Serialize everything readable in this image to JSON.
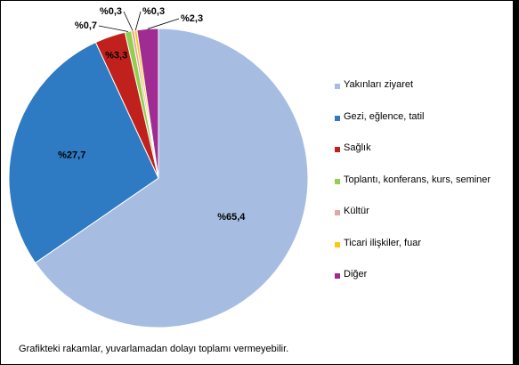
{
  "chart_data": {
    "type": "pie",
    "series": [
      {
        "label": "Yakınları ziyaret",
        "value": 65.4,
        "value_label": "%65,4",
        "color": "#a6bde1"
      },
      {
        "label": "Gezi, eğlence, tatil",
        "value": 27.7,
        "value_label": "%27,7",
        "color": "#2e7ac3"
      },
      {
        "label": "Sağlık",
        "value": 3.3,
        "value_label": "%3,3",
        "color": "#c0211c"
      },
      {
        "label": "Toplantı, konferans, kurs, seminer",
        "value": 0.7,
        "value_label": "%0,7",
        "color": "#92cf4e"
      },
      {
        "label": "Kültür",
        "value": 0.3,
        "value_label": "%0,3",
        "color": "#e4a6a0"
      },
      {
        "label": "Ticari ilişkiler, fuar",
        "value": 0.3,
        "value_label": "%0,3",
        "color": "#fcc80f"
      },
      {
        "label": "Diğer",
        "value": 2.3,
        "value_label": "%2,3",
        "color": "#a02b93"
      }
    ],
    "legend_position": "right",
    "footnote": "Grafikteki rakamlar, yuvarlamadan dolayı toplamı vermeyebilir."
  }
}
